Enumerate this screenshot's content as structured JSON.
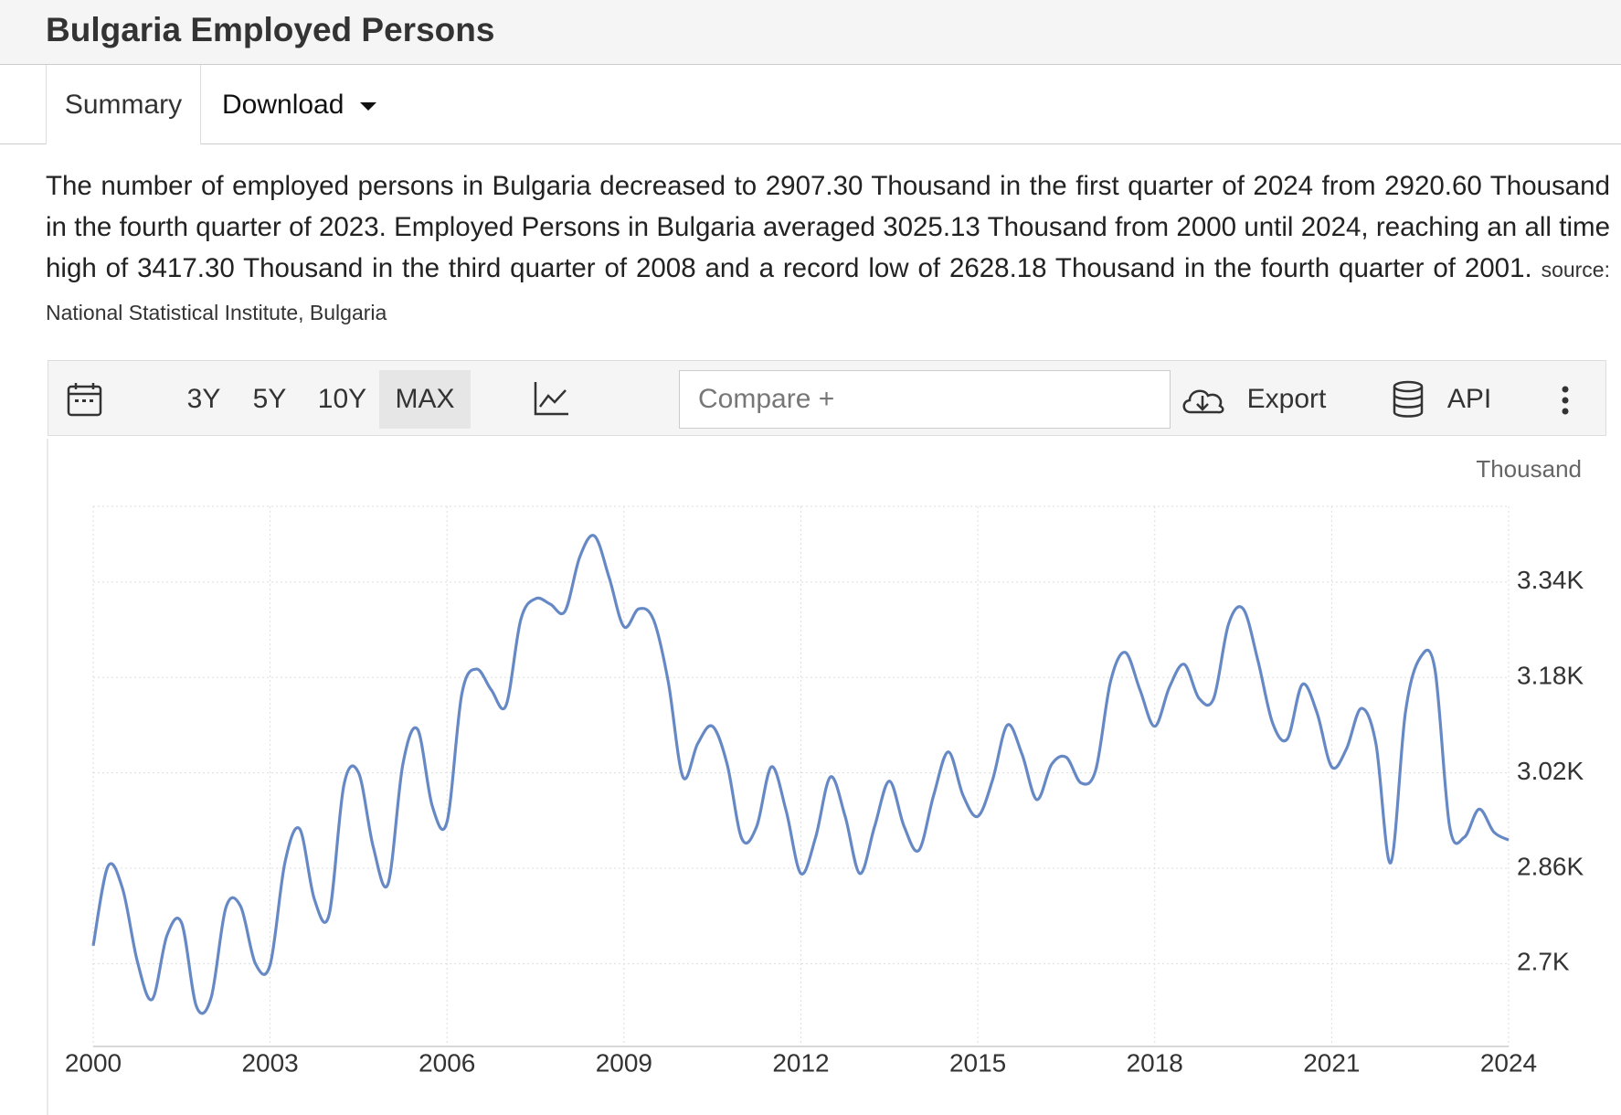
{
  "header": {
    "title": "Bulgaria Employed Persons"
  },
  "tabs": [
    "Summary",
    "Download"
  ],
  "description": "The number of employed persons in Bulgaria decreased to 2907.30 Thousand in the first quarter of 2024 from 2920.60 Thousand in the fourth quarter of 2023. Employed Persons in Bulgaria averaged 3025.13 Thousand from 2000 until 2024, reaching an all time high of 3417.30 Thousand in the third quarter of 2008 and a record low of 2628.18 Thousand in the fourth quarter of 2001.",
  "source": "source: National Statistical Institute, Bulgaria",
  "toolbar": {
    "ranges": [
      "3Y",
      "5Y",
      "10Y",
      "MAX"
    ],
    "compare": "Compare +",
    "export": "Export",
    "api": "API"
  },
  "chart_data": {
    "type": "line",
    "y_unit": "Thousand",
    "color": "#6689c6",
    "grid": true,
    "x": [
      2000,
      2000.25,
      2000.5,
      2000.75,
      2001,
      2001.25,
      2001.5,
      2001.75,
      2002,
      2002.25,
      2002.5,
      2002.75,
      2003,
      2003.25,
      2003.5,
      2003.75,
      2004,
      2004.25,
      2004.5,
      2004.75,
      2005,
      2005.25,
      2005.5,
      2005.75,
      2006,
      2006.25,
      2006.5,
      2006.75,
      2007,
      2007.25,
      2007.5,
      2007.75,
      2008,
      2008.25,
      2008.5,
      2008.75,
      2009,
      2009.25,
      2009.5,
      2009.75,
      2010,
      2010.25,
      2010.5,
      2010.75,
      2011,
      2011.25,
      2011.5,
      2011.75,
      2012,
      2012.25,
      2012.5,
      2012.75,
      2013,
      2013.25,
      2013.5,
      2013.75,
      2014,
      2014.25,
      2014.5,
      2014.75,
      2015,
      2015.25,
      2015.5,
      2015.75,
      2016,
      2016.25,
      2016.5,
      2016.75,
      2017,
      2017.25,
      2017.5,
      2017.75,
      2018,
      2018.25,
      2018.5,
      2018.75,
      2019,
      2019.25,
      2019.5,
      2019.75,
      2020,
      2020.25,
      2020.5,
      2020.75,
      2021,
      2021.25,
      2021.5,
      2021.75,
      2022,
      2022.25,
      2022.5,
      2022.75,
      2023,
      2023.25,
      2023.5,
      2023.75,
      2024
    ],
    "values": [
      2730,
      2863,
      2825,
      2703,
      2640,
      2747,
      2768,
      2628.18,
      2643,
      2794,
      2796,
      2700,
      2698,
      2869,
      2926,
      2808,
      2782,
      2999,
      3020,
      2895,
      2834,
      3034,
      3093,
      2964,
      2938,
      3152,
      3194,
      3159,
      3133,
      3277,
      3312,
      3303,
      3291,
      3382,
      3417.3,
      3347,
      3265,
      3295,
      3277,
      3173,
      3013,
      3069,
      3098,
      3034,
      2909,
      2930,
      3030,
      2956,
      2851,
      2912,
      3013,
      2947,
      2851,
      2930,
      3006,
      2930,
      2890,
      2982,
      3055,
      2982,
      2947,
      3008,
      3100,
      3051,
      2975,
      3034,
      3046,
      3003,
      3025,
      3173,
      3222,
      3159,
      3098,
      3164,
      3202,
      3145,
      3145,
      3269,
      3295,
      3208,
      3103,
      3077,
      3168,
      3121,
      3030,
      3060,
      3128,
      3069,
      2869,
      3121,
      3213,
      3194,
      2930,
      2912,
      2959,
      2920.6,
      2907.3
    ],
    "xlim": [
      2000,
      2024
    ],
    "xticks": [
      2000,
      2003,
      2006,
      2009,
      2012,
      2015,
      2018,
      2021,
      2024
    ],
    "ylim": [
      2561,
      3467
    ],
    "yticks": [
      {
        "value": 2700,
        "label": "2.7K"
      },
      {
        "value": 2860,
        "label": "2.86K"
      },
      {
        "value": 3020,
        "label": "3.02K"
      },
      {
        "value": 3180,
        "label": "3.18K"
      },
      {
        "value": 3340,
        "label": "3.34K"
      }
    ]
  }
}
